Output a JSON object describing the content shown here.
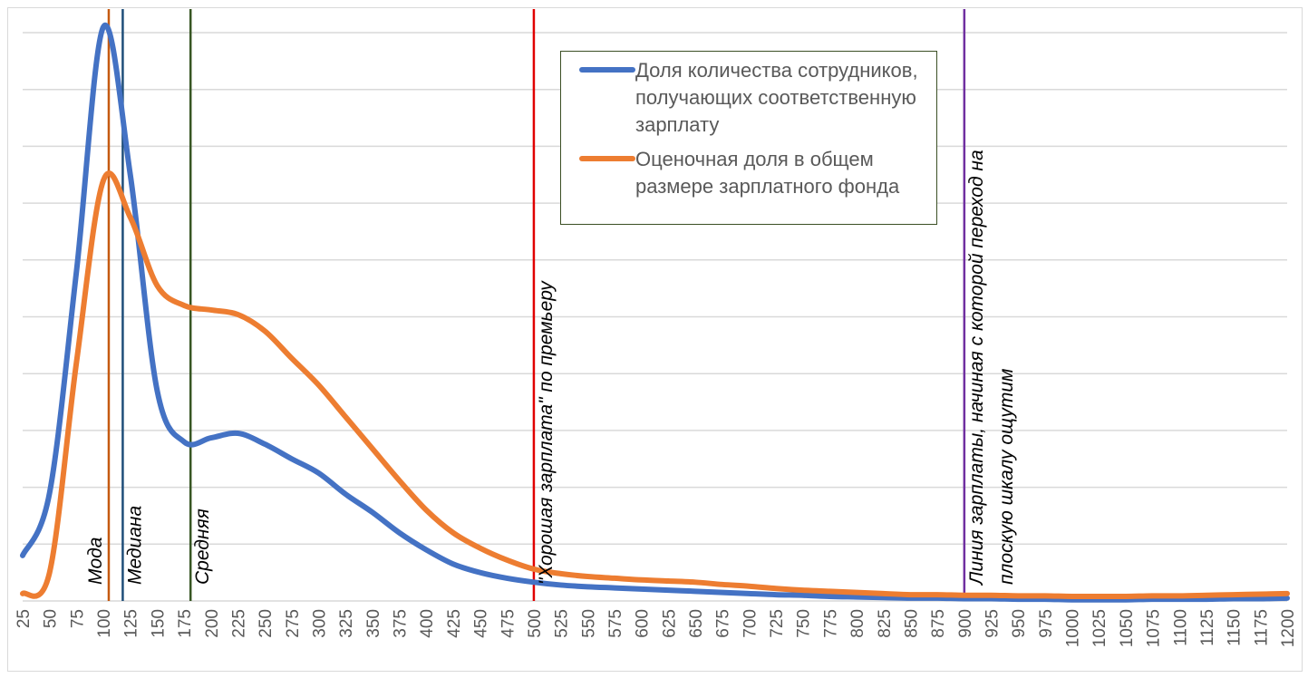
{
  "chart_data": {
    "type": "line",
    "title": "",
    "xlabel": "",
    "ylabel": "",
    "categories": [
      25,
      50,
      75,
      100,
      125,
      150,
      175,
      200,
      225,
      250,
      275,
      300,
      325,
      350,
      375,
      400,
      425,
      450,
      475,
      500,
      525,
      550,
      575,
      600,
      625,
      650,
      675,
      700,
      725,
      750,
      775,
      800,
      825,
      850,
      875,
      900,
      925,
      950,
      975,
      1000,
      1025,
      1050,
      1075,
      1100,
      1125,
      1150,
      1175,
      1200
    ],
    "ylim": [
      0,
      10
    ],
    "y_tick_labels_shown": false,
    "grid": true,
    "legend_position": "top-center",
    "series": [
      {
        "name": "Доля количества сотрудников, получающих соответственную зарплату",
        "color": "#4472c4",
        "values": [
          0.8,
          1.9,
          5.8,
          10.1,
          7.5,
          3.7,
          2.8,
          2.87,
          2.95,
          2.76,
          2.5,
          2.25,
          1.88,
          1.56,
          1.2,
          0.9,
          0.65,
          0.5,
          0.4,
          0.33,
          0.28,
          0.25,
          0.23,
          0.21,
          0.19,
          0.17,
          0.15,
          0.13,
          0.11,
          0.1,
          0.08,
          0.07,
          0.06,
          0.05,
          0.05,
          0.04,
          0.04,
          0.03,
          0.03,
          0.02,
          0.02,
          0.02,
          0.03,
          0.03,
          0.03,
          0.04,
          0.04,
          0.05
        ]
      },
      {
        "name": "Оценочная доля в общем размере зарплатного фонда",
        "color": "#ed7d31",
        "values": [
          0.13,
          0.5,
          4.2,
          7.4,
          6.75,
          5.55,
          5.2,
          5.12,
          5.04,
          4.75,
          4.27,
          3.8,
          3.24,
          2.68,
          2.12,
          1.6,
          1.2,
          0.93,
          0.72,
          0.56,
          0.48,
          0.43,
          0.4,
          0.37,
          0.35,
          0.33,
          0.29,
          0.26,
          0.22,
          0.19,
          0.17,
          0.15,
          0.13,
          0.11,
          0.11,
          0.1,
          0.1,
          0.09,
          0.09,
          0.08,
          0.08,
          0.08,
          0.09,
          0.09,
          0.1,
          0.11,
          0.12,
          0.13
        ]
      }
    ],
    "vertical_lines": [
      {
        "x": 105,
        "label": "Мода",
        "color": "#c55a11",
        "label_side": "left"
      },
      {
        "x": 118,
        "label": "Медиана",
        "color": "#1f4e79",
        "label_side": "right"
      },
      {
        "x": 181,
        "label": "Средняя",
        "color": "#375623",
        "label_side": "right"
      },
      {
        "x": 500,
        "label": "\"Хорошая зарплата\" по премьеру",
        "color": "#e00000",
        "label_side": "right"
      },
      {
        "x": 900,
        "label": [
          "Линия зарплаты, начиная с которой переход на",
          "плоскую шкалу ощутим"
        ],
        "color": "#7030a0",
        "label_side": "right"
      }
    ]
  }
}
